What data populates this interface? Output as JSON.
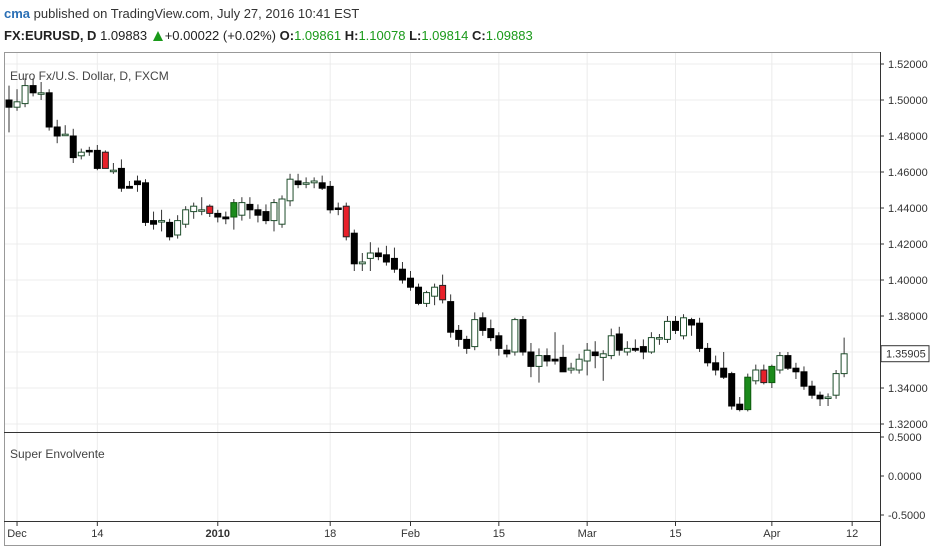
{
  "header": {
    "user": "cma",
    "published": "published on TradingView.com, July 27, 2016 10:41 EST",
    "symbol": "FX:EURUSD, D",
    "last": "1.09883",
    "change": "+0.00022 (+0.02%)",
    "open_label": "O:",
    "open": "1.09861",
    "high_label": "H:",
    "high": "1.10078",
    "low_label": "L:",
    "low": "1.09814",
    "close_label": "C:",
    "close": "1.09883"
  },
  "colors": {
    "bear": "#000000",
    "bull_fill": "#ffffff",
    "bull_border": "#1e4d2b",
    "signal_red": "#e8202a",
    "signal_green": "#1b8a1b",
    "grid": "#ececec",
    "axis": "#333333",
    "last_price_box": "#ffffff"
  },
  "chart_data": [
    {
      "type": "candlestick",
      "title": "Euro Fx/U.S. Dollar, D, FXCM",
      "ylim": [
        1.315,
        1.525
      ],
      "y_ticks": [
        "1.52000",
        "1.50000",
        "1.48000",
        "1.46000",
        "1.44000",
        "1.42000",
        "1.40000",
        "1.38000",
        "1.36000",
        "1.34000",
        "1.32000"
      ],
      "last_price_label": "1.35905",
      "x_ticks": [
        "Dec",
        "14",
        "2010",
        "18",
        "Feb",
        "15",
        "Mar",
        "15",
        "Apr",
        "12"
      ],
      "x_tick_index": [
        1,
        11,
        26,
        40,
        50,
        61,
        72,
        83,
        95,
        105
      ],
      "bold_tick": "2010",
      "candles": [
        {
          "o": 1.5,
          "h": 1.508,
          "l": 1.482,
          "c": 1.496
        },
        {
          "o": 1.496,
          "h": 1.506,
          "l": 1.494,
          "c": 1.499
        },
        {
          "o": 1.498,
          "h": 1.512,
          "l": 1.496,
          "c": 1.508
        },
        {
          "o": 1.508,
          "h": 1.512,
          "l": 1.502,
          "c": 1.504
        },
        {
          "o": 1.504,
          "h": 1.51,
          "l": 1.5,
          "c": 1.504
        },
        {
          "o": 1.504,
          "h": 1.506,
          "l": 1.483,
          "c": 1.485
        },
        {
          "o": 1.485,
          "h": 1.489,
          "l": 1.476,
          "c": 1.48
        },
        {
          "o": 1.481,
          "h": 1.486,
          "l": 1.48,
          "c": 1.481
        },
        {
          "o": 1.48,
          "h": 1.484,
          "l": 1.465,
          "c": 1.468
        },
        {
          "o": 1.469,
          "h": 1.473,
          "l": 1.467,
          "c": 1.471
        },
        {
          "o": 1.472,
          "h": 1.474,
          "l": 1.469,
          "c": 1.472,
          "s": "bear"
        },
        {
          "o": 1.472,
          "h": 1.475,
          "l": 1.461,
          "c": 1.462
        },
        {
          "o": 1.471,
          "h": 1.472,
          "l": 1.462,
          "c": 1.462,
          "s": "red"
        },
        {
          "o": 1.461,
          "h": 1.465,
          "l": 1.459,
          "c": 1.461
        },
        {
          "o": 1.462,
          "h": 1.467,
          "l": 1.449,
          "c": 1.451
        },
        {
          "o": 1.452,
          "h": 1.455,
          "l": 1.451,
          "c": 1.451,
          "s": "bear"
        },
        {
          "o": 1.455,
          "h": 1.458,
          "l": 1.449,
          "c": 1.453
        },
        {
          "o": 1.454,
          "h": 1.456,
          "l": 1.43,
          "c": 1.432
        },
        {
          "o": 1.433,
          "h": 1.438,
          "l": 1.428,
          "c": 1.431
        },
        {
          "o": 1.433,
          "h": 1.439,
          "l": 1.427,
          "c": 1.433
        },
        {
          "o": 1.432,
          "h": 1.434,
          "l": 1.422,
          "c": 1.424
        },
        {
          "o": 1.425,
          "h": 1.436,
          "l": 1.423,
          "c": 1.433
        },
        {
          "o": 1.431,
          "h": 1.441,
          "l": 1.429,
          "c": 1.439
        },
        {
          "o": 1.438,
          "h": 1.443,
          "l": 1.434,
          "c": 1.441
        },
        {
          "o": 1.439,
          "h": 1.446,
          "l": 1.436,
          "c": 1.439
        },
        {
          "o": 1.441,
          "h": 1.442,
          "l": 1.435,
          "c": 1.437,
          "s": "red"
        },
        {
          "o": 1.437,
          "h": 1.439,
          "l": 1.432,
          "c": 1.435
        },
        {
          "o": 1.435,
          "h": 1.438,
          "l": 1.431,
          "c": 1.434
        },
        {
          "o": 1.435,
          "h": 1.445,
          "l": 1.428,
          "c": 1.443,
          "s": "green"
        },
        {
          "o": 1.436,
          "h": 1.446,
          "l": 1.433,
          "c": 1.443
        },
        {
          "o": 1.442,
          "h": 1.446,
          "l": 1.434,
          "c": 1.439
        },
        {
          "o": 1.439,
          "h": 1.442,
          "l": 1.432,
          "c": 1.436
        },
        {
          "o": 1.438,
          "h": 1.442,
          "l": 1.431,
          "c": 1.433
        },
        {
          "o": 1.433,
          "h": 1.445,
          "l": 1.427,
          "c": 1.443
        },
        {
          "o": 1.431,
          "h": 1.447,
          "l": 1.429,
          "c": 1.445
        },
        {
          "o": 1.444,
          "h": 1.459,
          "l": 1.441,
          "c": 1.456
        },
        {
          "o": 1.455,
          "h": 1.459,
          "l": 1.451,
          "c": 1.453
        },
        {
          "o": 1.454,
          "h": 1.457,
          "l": 1.451,
          "c": 1.454
        },
        {
          "o": 1.454,
          "h": 1.457,
          "l": 1.451,
          "c": 1.455
        },
        {
          "o": 1.454,
          "h": 1.458,
          "l": 1.45,
          "c": 1.451
        },
        {
          "o": 1.452,
          "h": 1.455,
          "l": 1.437,
          "c": 1.439
        },
        {
          "o": 1.44,
          "h": 1.443,
          "l": 1.436,
          "c": 1.44,
          "s": "bear"
        },
        {
          "o": 1.441,
          "h": 1.443,
          "l": 1.422,
          "c": 1.424,
          "s": "red"
        },
        {
          "o": 1.426,
          "h": 1.428,
          "l": 1.405,
          "c": 1.409
        },
        {
          "o": 1.409,
          "h": 1.415,
          "l": 1.405,
          "c": 1.41
        },
        {
          "o": 1.412,
          "h": 1.421,
          "l": 1.405,
          "c": 1.415
        },
        {
          "o": 1.415,
          "h": 1.418,
          "l": 1.411,
          "c": 1.413
        },
        {
          "o": 1.414,
          "h": 1.419,
          "l": 1.408,
          "c": 1.41
        },
        {
          "o": 1.412,
          "h": 1.418,
          "l": 1.404,
          "c": 1.406
        },
        {
          "o": 1.406,
          "h": 1.41,
          "l": 1.398,
          "c": 1.4
        },
        {
          "o": 1.401,
          "h": 1.405,
          "l": 1.394,
          "c": 1.396
        },
        {
          "o": 1.396,
          "h": 1.398,
          "l": 1.386,
          "c": 1.387
        },
        {
          "o": 1.387,
          "h": 1.394,
          "l": 1.385,
          "c": 1.393
        },
        {
          "o": 1.391,
          "h": 1.398,
          "l": 1.386,
          "c": 1.396
        },
        {
          "o": 1.397,
          "h": 1.403,
          "l": 1.387,
          "c": 1.389,
          "s": "red"
        },
        {
          "o": 1.388,
          "h": 1.392,
          "l": 1.368,
          "c": 1.371
        },
        {
          "o": 1.372,
          "h": 1.375,
          "l": 1.363,
          "c": 1.367
        },
        {
          "o": 1.367,
          "h": 1.369,
          "l": 1.359,
          "c": 1.362
        },
        {
          "o": 1.363,
          "h": 1.382,
          "l": 1.361,
          "c": 1.378
        },
        {
          "o": 1.379,
          "h": 1.382,
          "l": 1.369,
          "c": 1.372
        },
        {
          "o": 1.373,
          "h": 1.378,
          "l": 1.366,
          "c": 1.368
        },
        {
          "o": 1.369,
          "h": 1.371,
          "l": 1.358,
          "c": 1.362
        },
        {
          "o": 1.361,
          "h": 1.364,
          "l": 1.357,
          "c": 1.359
        },
        {
          "o": 1.36,
          "h": 1.379,
          "l": 1.358,
          "c": 1.378
        },
        {
          "o": 1.378,
          "h": 1.38,
          "l": 1.358,
          "c": 1.36
        },
        {
          "o": 1.36,
          "h": 1.365,
          "l": 1.346,
          "c": 1.352
        },
        {
          "o": 1.352,
          "h": 1.362,
          "l": 1.343,
          "c": 1.358
        },
        {
          "o": 1.358,
          "h": 1.362,
          "l": 1.352,
          "c": 1.355
        },
        {
          "o": 1.356,
          "h": 1.371,
          "l": 1.353,
          "c": 1.355
        },
        {
          "o": 1.357,
          "h": 1.364,
          "l": 1.349,
          "c": 1.349
        },
        {
          "o": 1.35,
          "h": 1.354,
          "l": 1.348,
          "c": 1.351
        },
        {
          "o": 1.35,
          "h": 1.359,
          "l": 1.348,
          "c": 1.356
        },
        {
          "o": 1.355,
          "h": 1.365,
          "l": 1.347,
          "c": 1.361
        },
        {
          "o": 1.36,
          "h": 1.366,
          "l": 1.351,
          "c": 1.358
        },
        {
          "o": 1.357,
          "h": 1.361,
          "l": 1.344,
          "c": 1.359
        },
        {
          "o": 1.358,
          "h": 1.373,
          "l": 1.356,
          "c": 1.369
        },
        {
          "o": 1.37,
          "h": 1.374,
          "l": 1.358,
          "c": 1.361
        },
        {
          "o": 1.36,
          "h": 1.366,
          "l": 1.358,
          "c": 1.362
        },
        {
          "o": 1.362,
          "h": 1.367,
          "l": 1.36,
          "c": 1.361
        },
        {
          "o": 1.363,
          "h": 1.367,
          "l": 1.356,
          "c": 1.36
        },
        {
          "o": 1.36,
          "h": 1.371,
          "l": 1.359,
          "c": 1.368
        },
        {
          "o": 1.368,
          "h": 1.37,
          "l": 1.364,
          "c": 1.368
        },
        {
          "o": 1.367,
          "h": 1.38,
          "l": 1.365,
          "c": 1.377
        },
        {
          "o": 1.377,
          "h": 1.38,
          "l": 1.37,
          "c": 1.372
        },
        {
          "o": 1.369,
          "h": 1.381,
          "l": 1.367,
          "c": 1.379
        },
        {
          "o": 1.378,
          "h": 1.379,
          "l": 1.369,
          "c": 1.375
        },
        {
          "o": 1.376,
          "h": 1.379,
          "l": 1.36,
          "c": 1.362
        },
        {
          "o": 1.362,
          "h": 1.365,
          "l": 1.352,
          "c": 1.354
        },
        {
          "o": 1.354,
          "h": 1.358,
          "l": 1.347,
          "c": 1.35
        },
        {
          "o": 1.351,
          "h": 1.36,
          "l": 1.345,
          "c": 1.346
        },
        {
          "o": 1.348,
          "h": 1.349,
          "l": 1.328,
          "c": 1.33
        },
        {
          "o": 1.331,
          "h": 1.335,
          "l": 1.327,
          "c": 1.328
        },
        {
          "o": 1.328,
          "h": 1.348,
          "l": 1.327,
          "c": 1.346,
          "s": "green"
        },
        {
          "o": 1.344,
          "h": 1.353,
          "l": 1.342,
          "c": 1.35
        },
        {
          "o": 1.35,
          "h": 1.353,
          "l": 1.342,
          "c": 1.343,
          "s": "red"
        },
        {
          "o": 1.343,
          "h": 1.353,
          "l": 1.34,
          "c": 1.352,
          "s": "green"
        },
        {
          "o": 1.35,
          "h": 1.36,
          "l": 1.348,
          "c": 1.358
        },
        {
          "o": 1.358,
          "h": 1.36,
          "l": 1.35,
          "c": 1.351
        },
        {
          "o": 1.351,
          "h": 1.354,
          "l": 1.345,
          "c": 1.349
        },
        {
          "o": 1.349,
          "h": 1.352,
          "l": 1.339,
          "c": 1.341
        },
        {
          "o": 1.341,
          "h": 1.344,
          "l": 1.334,
          "c": 1.336
        },
        {
          "o": 1.336,
          "h": 1.338,
          "l": 1.33,
          "c": 1.334
        },
        {
          "o": 1.335,
          "h": 1.337,
          "l": 1.33,
          "c": 1.335
        },
        {
          "o": 1.336,
          "h": 1.35,
          "l": 1.334,
          "c": 1.348
        },
        {
          "o": 1.348,
          "h": 1.368,
          "l": 1.346,
          "c": 1.359
        }
      ]
    },
    {
      "type": "line",
      "title": "Super Envolvente",
      "ylim": [
        -0.5,
        0.5
      ],
      "y_ticks": [
        "0.5000",
        "0.0000",
        "-0.5000"
      ],
      "series": []
    }
  ]
}
